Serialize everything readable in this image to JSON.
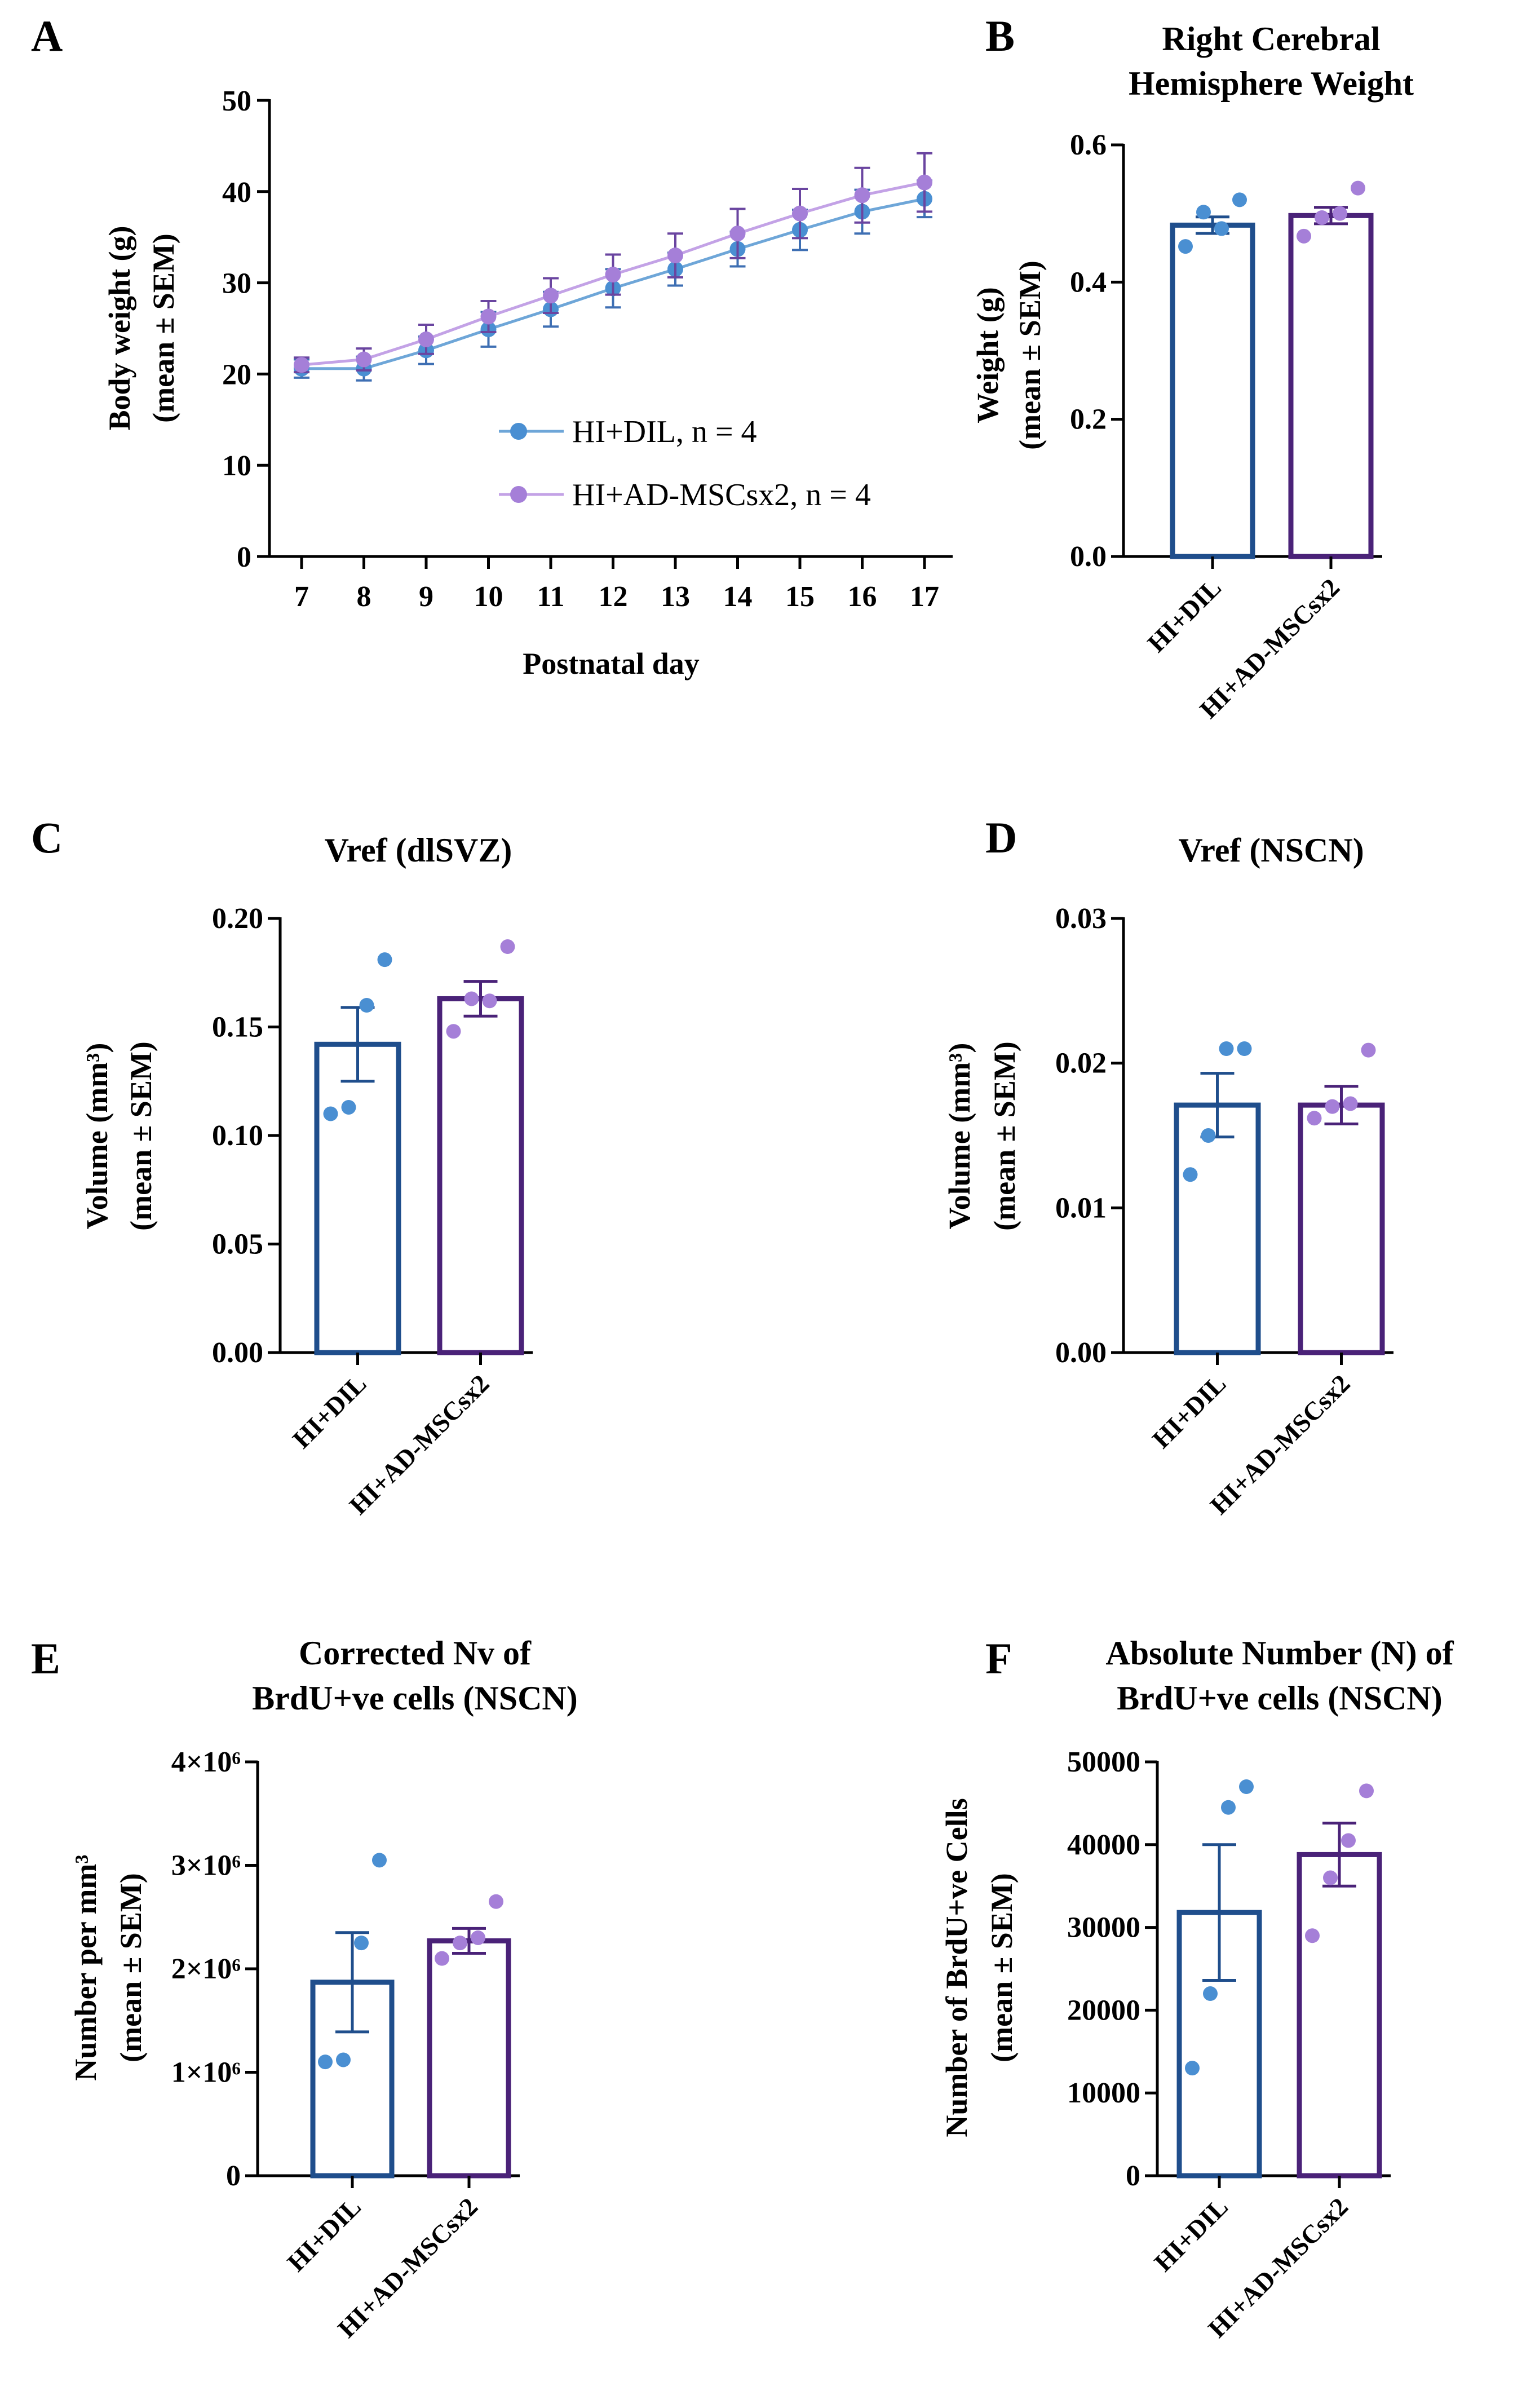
{
  "colors": {
    "dil_bar": "#1f4e8c",
    "msc_bar": "#4a2278",
    "dil_pt": "#4a8fd2",
    "msc_pt": "#a57fd8",
    "dil_line": "#6ea6d8",
    "msc_line": "#c3a2e6",
    "dil_err": "#3e6fb3",
    "msc_err": "#6a45a0"
  },
  "chart_data": [
    {
      "id": "A",
      "panel": "A",
      "type": "line",
      "title": "",
      "xlabel": "Postnatal day",
      "ylabel": [
        "Body weight (g)",
        "(mean ± SEM)"
      ],
      "ylim": [
        0,
        50
      ],
      "yticks": [
        "0",
        "10",
        "20",
        "30",
        "40",
        "50"
      ],
      "x": [
        "7",
        "8",
        "9",
        "10",
        "11",
        "12",
        "13",
        "14",
        "15",
        "16",
        "17"
      ],
      "series": [
        {
          "name": "HI+DIL, n = 4",
          "values": [
            20.6,
            20.6,
            22.6,
            24.9,
            27.1,
            29.4,
            31.5,
            33.7,
            35.8,
            37.8,
            39.2
          ],
          "sem": [
            1.0,
            1.3,
            1.5,
            1.9,
            1.9,
            2.1,
            1.8,
            1.9,
            2.2,
            2.4,
            2.0
          ]
        },
        {
          "name": "HI+AD-MSCsx2, n = 4",
          "values": [
            21.0,
            21.6,
            23.8,
            26.3,
            28.6,
            30.9,
            33.0,
            35.4,
            37.6,
            39.6,
            41.0
          ],
          "sem": [
            0.8,
            1.2,
            1.6,
            1.7,
            1.9,
            2.2,
            2.4,
            2.7,
            2.7,
            3.0,
            3.2
          ]
        }
      ]
    },
    {
      "id": "B",
      "panel": "B",
      "type": "bar",
      "title": [
        "Right Cerebral",
        "Hemisphere Weight"
      ],
      "ylabel": [
        "Weight (g)",
        "(mean ± SEM)"
      ],
      "ylim": [
        0,
        0.6
      ],
      "yticks": [
        "0.0",
        "0.2",
        "0.4",
        "0.6"
      ],
      "categories": [
        "HI+DIL",
        "HI+AD-MSCsx2"
      ],
      "values": [
        0.483,
        0.497
      ],
      "sem": [
        0.012,
        0.012
      ],
      "points": [
        [
          0.452,
          0.502,
          0.478,
          0.52
        ],
        [
          0.467,
          0.494,
          0.5,
          0.537
        ]
      ]
    },
    {
      "id": "C",
      "panel": "C",
      "type": "bar",
      "title": [
        "Vref (dlSVZ)"
      ],
      "ylabel": [
        "Volume (mm³)",
        "(mean ± SEM)"
      ],
      "ylim": [
        0,
        0.2
      ],
      "yticks": [
        "0.00",
        "0.05",
        "0.10",
        "0.15",
        "0.20"
      ],
      "categories": [
        "HI+DIL",
        "HI+AD-MSCsx2"
      ],
      "values": [
        0.142,
        0.163
      ],
      "sem": [
        0.017,
        0.008
      ],
      "points": [
        [
          0.11,
          0.113,
          0.16,
          0.181
        ],
        [
          0.148,
          0.163,
          0.162,
          0.187
        ]
      ]
    },
    {
      "id": "D",
      "panel": "D",
      "type": "bar",
      "title": [
        "Vref (NSCN)"
      ],
      "ylabel": [
        "Volume (mm³)",
        "(mean ± SEM)"
      ],
      "ylim": [
        0,
        0.03
      ],
      "yticks": [
        "0.00",
        "0.01",
        "0.02",
        "0.03"
      ],
      "categories": [
        "HI+DIL",
        "HI+AD-MSCsx2"
      ],
      "values": [
        0.0171,
        0.0171
      ],
      "sem": [
        0.0022,
        0.0013
      ],
      "points": [
        [
          0.0123,
          0.015,
          0.021,
          0.021
        ],
        [
          0.0162,
          0.017,
          0.0172,
          0.0209
        ]
      ]
    },
    {
      "id": "E",
      "panel": "E",
      "type": "bar",
      "title": [
        "Corrected Nv of",
        "BrdU+ve cells (NSCN)"
      ],
      "ylabel": [
        "Number per mm³",
        "(mean ± SEM)"
      ],
      "ylim": [
        0,
        4000000
      ],
      "yticks": [
        "0",
        "1×10⁶",
        "2×10⁶",
        "3×10⁶",
        "4×10⁶"
      ],
      "categories": [
        "HI+DIL",
        "HI+AD-MSCsx2"
      ],
      "values": [
        1870000,
        2270000
      ],
      "sem": [
        480000,
        120000
      ],
      "points": [
        [
          1100000,
          1120000,
          2250000,
          3050000
        ],
        [
          2100000,
          2250000,
          2300000,
          2650000
        ]
      ]
    },
    {
      "id": "F",
      "panel": "F",
      "type": "bar",
      "title": [
        "Absolute Number (N) of",
        "BrdU+ve cells (NSCN)"
      ],
      "ylabel": [
        "Number of BrdU+ve Cells",
        "(mean ± SEM)"
      ],
      "ylim": [
        0,
        50000
      ],
      "yticks": [
        "0",
        "10000",
        "20000",
        "30000",
        "40000",
        "50000"
      ],
      "categories": [
        "HI+DIL",
        "HI+AD-MSCsx2"
      ],
      "values": [
        31800,
        38800
      ],
      "sem": [
        8200,
        3800
      ],
      "points": [
        [
          13000,
          22000,
          44500,
          47000
        ],
        [
          29000,
          36000,
          40500,
          46500
        ]
      ]
    }
  ]
}
